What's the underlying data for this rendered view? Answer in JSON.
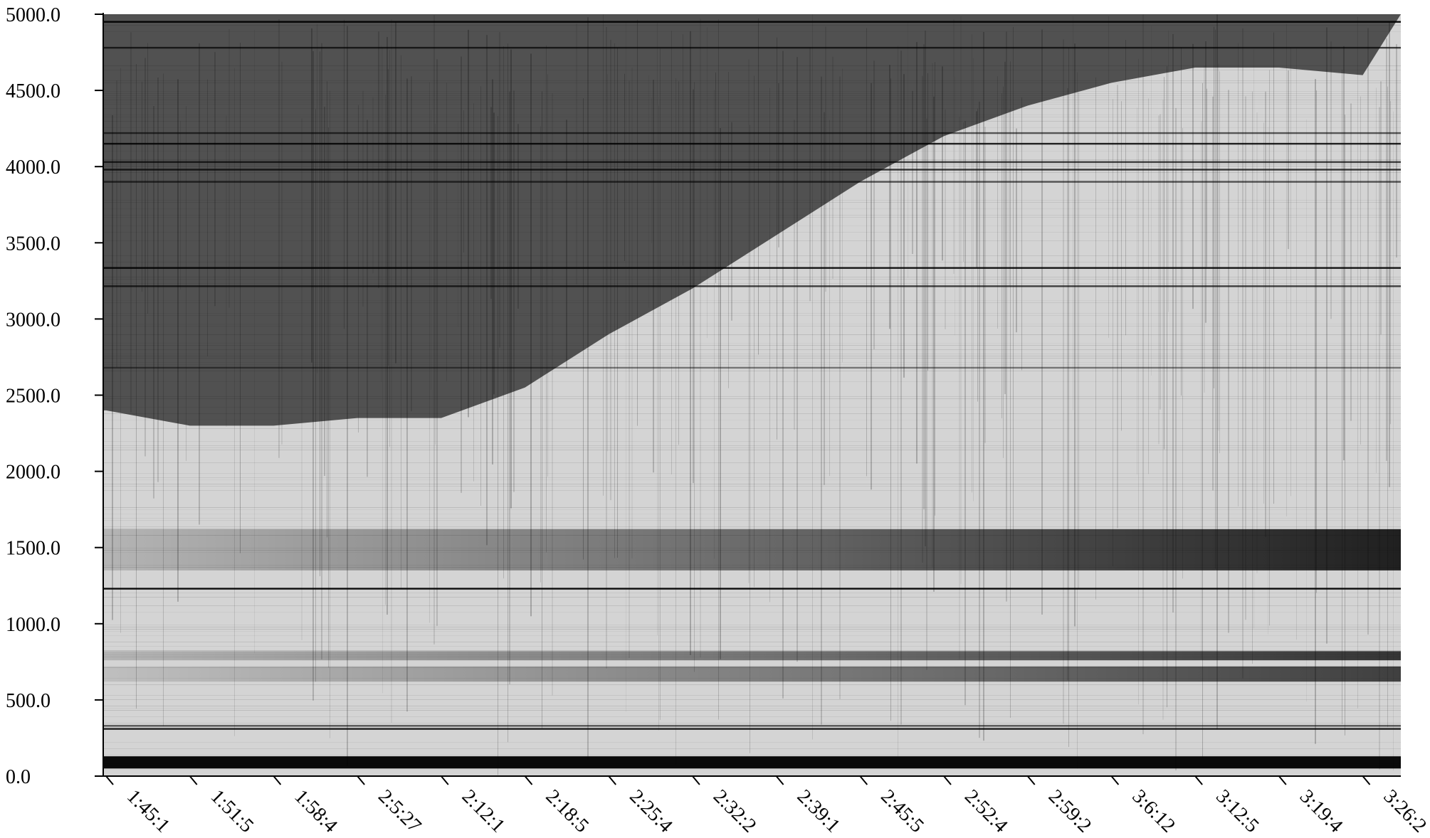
{
  "chart_data": {
    "type": "heatmap",
    "colormap": [
      "#ffffff",
      "#000000"
    ],
    "title": "",
    "xlabel": "",
    "ylabel": "",
    "ylim": [
      0,
      5000
    ],
    "grid": false,
    "y_ticks": [
      0,
      500,
      1000,
      1500,
      2000,
      2500,
      3000,
      3500,
      4000,
      4500,
      5000
    ],
    "y_tick_labels": [
      "0.0",
      "500.0",
      "1000.0",
      "1500.0",
      "2000.0",
      "2500.0",
      "3000.0",
      "3500.0",
      "4000.0",
      "4500.0",
      "5000.0"
    ],
    "x_tick_labels": [
      "1:45:1",
      "1:51:5",
      "1:58:4",
      "2:5:27",
      "2:12:1",
      "2:18:5",
      "2:25:4",
      "2:32:2",
      "2:39:1",
      "2:45:5",
      "2:52:4",
      "2:59:2",
      "3:6:12",
      "3:12:5",
      "3:19:4",
      "3:26:2"
    ],
    "dark_band_boundary": {
      "x_ticks": [
        "1:45:1",
        "1:51:5",
        "1:58:4",
        "2:5:27",
        "2:12:1",
        "2:18:5",
        "2:25:4",
        "2:32:2",
        "2:39:1",
        "2:45:5",
        "2:52:4",
        "2:59:2",
        "3:6:12",
        "3:12:5",
        "3:19:4",
        "3:26:2"
      ],
      "frequency": [
        2400,
        2300,
        2300,
        2350,
        2350,
        2550,
        2900,
        3200,
        3550,
        3900,
        4200,
        4400,
        4550,
        4650,
        4650,
        4600
      ]
    },
    "horizontal_bands": [
      {
        "range": [
          50,
          130
        ],
        "intensity": 0.95
      },
      {
        "range": [
          620,
          720
        ],
        "intensity_start": 0.1,
        "intensity_end": 0.7
      },
      {
        "range": [
          760,
          820
        ],
        "intensity_start": 0.15,
        "intensity_end": 0.75
      },
      {
        "range": [
          1350,
          1620
        ],
        "intensity_start": 0.15,
        "intensity_end": 0.85
      }
    ],
    "horizontal_lines": [
      {
        "y": 310,
        "intensity": 0.85
      },
      {
        "y": 330,
        "intensity": 0.6
      },
      {
        "y": 1230,
        "intensity": 0.95
      },
      {
        "y": 2680,
        "intensity": 0.45
      },
      {
        "y": 3215,
        "intensity": 0.7
      },
      {
        "y": 3335,
        "intensity": 0.9
      },
      {
        "y": 3900,
        "intensity": 0.6
      },
      {
        "y": 3980,
        "intensity": 0.75
      },
      {
        "y": 4030,
        "intensity": 0.7
      },
      {
        "y": 4150,
        "intensity": 0.85
      },
      {
        "y": 4220,
        "intensity": 0.6
      },
      {
        "y": 4780,
        "intensity": 0.7
      },
      {
        "y": 4950,
        "intensity": 0.95
      }
    ]
  }
}
